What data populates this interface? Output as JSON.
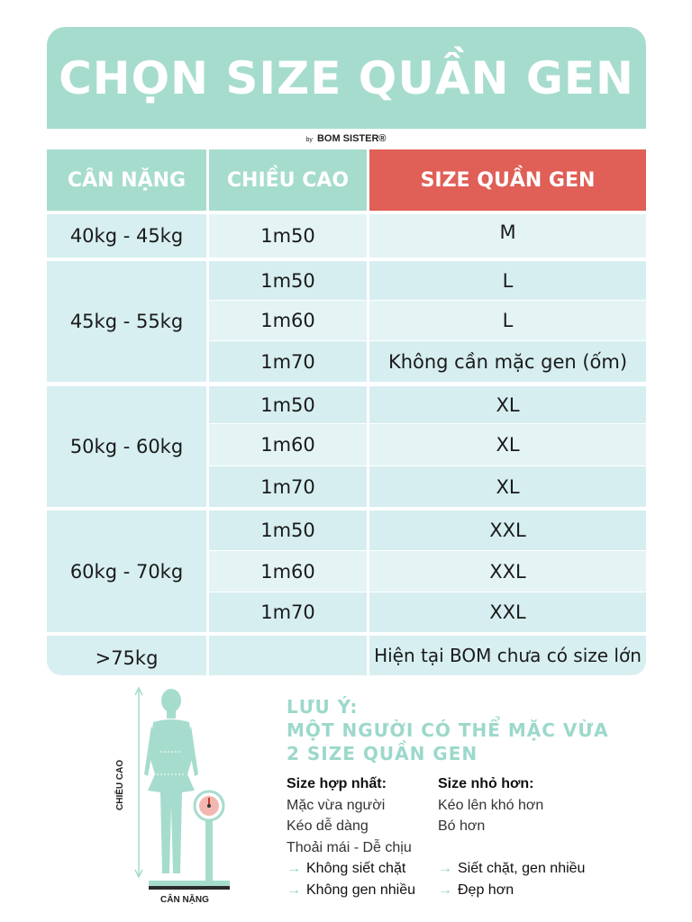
{
  "header": {
    "title": "CHỌN SIZE QUẦN GEN"
  },
  "brand": {
    "by": "by",
    "name": "BOM SISTER®"
  },
  "table": {
    "headers": {
      "weight": "CÂN NẶNG",
      "height": "CHIỀU CAO",
      "size": "SIZE QUẦN GEN"
    },
    "groups": [
      {
        "weight": "40kg -  45kg",
        "rows": [
          {
            "height": "1m50",
            "size": "M"
          }
        ]
      },
      {
        "weight": "45kg - 55kg",
        "rows": [
          {
            "height": "1m50",
            "size": "L"
          },
          {
            "height": "1m60",
            "size": "L"
          },
          {
            "height": "1m70",
            "size": "Không cần mặc gen (ốm)"
          }
        ]
      },
      {
        "weight": "50kg - 60kg",
        "rows": [
          {
            "height": "1m50",
            "size": "XL"
          },
          {
            "height": "1m60",
            "size": "XL"
          },
          {
            "height": "1m70",
            "size": "XL"
          }
        ]
      },
      {
        "weight": "60kg - 70kg",
        "rows": [
          {
            "height": "1m50",
            "size": "XXL"
          },
          {
            "height": "1m60",
            "size": "XXL"
          },
          {
            "height": "1m70",
            "size": "XXL"
          }
        ]
      },
      {
        "weight": ">75kg",
        "rows": [
          {
            "height": "",
            "size": "Hiện tại BOM chưa có size lớn"
          }
        ]
      }
    ]
  },
  "illustration": {
    "height_label": "CHIỀU CAO",
    "weight_label": "CÂN NẶNG"
  },
  "note": {
    "title_line1": "LƯU Ý:",
    "title_line2": "MỘT NGƯỜI CÓ THỂ MẶC VỪA",
    "title_line3": "2 SIZE QUẦN GEN",
    "best": {
      "heading": "Size hợp nhất:",
      "lines": [
        "Mặc vừa người",
        "Kéo dễ dàng",
        "Thoải mái - Dễ chịu"
      ],
      "arrows": [
        "Không siết chặt",
        "Không gen nhiều"
      ]
    },
    "smaller": {
      "heading": "Size nhỏ hơn:",
      "lines": [
        "Kéo lên khó hơn",
        "Bó hơn"
      ],
      "arrows": [
        "Siết chặt, gen nhiều",
        "Đẹp hơn"
      ]
    }
  },
  "colors": {
    "mint": "#a6dccd",
    "red": "#e05f57",
    "light": "#d7eff1"
  }
}
